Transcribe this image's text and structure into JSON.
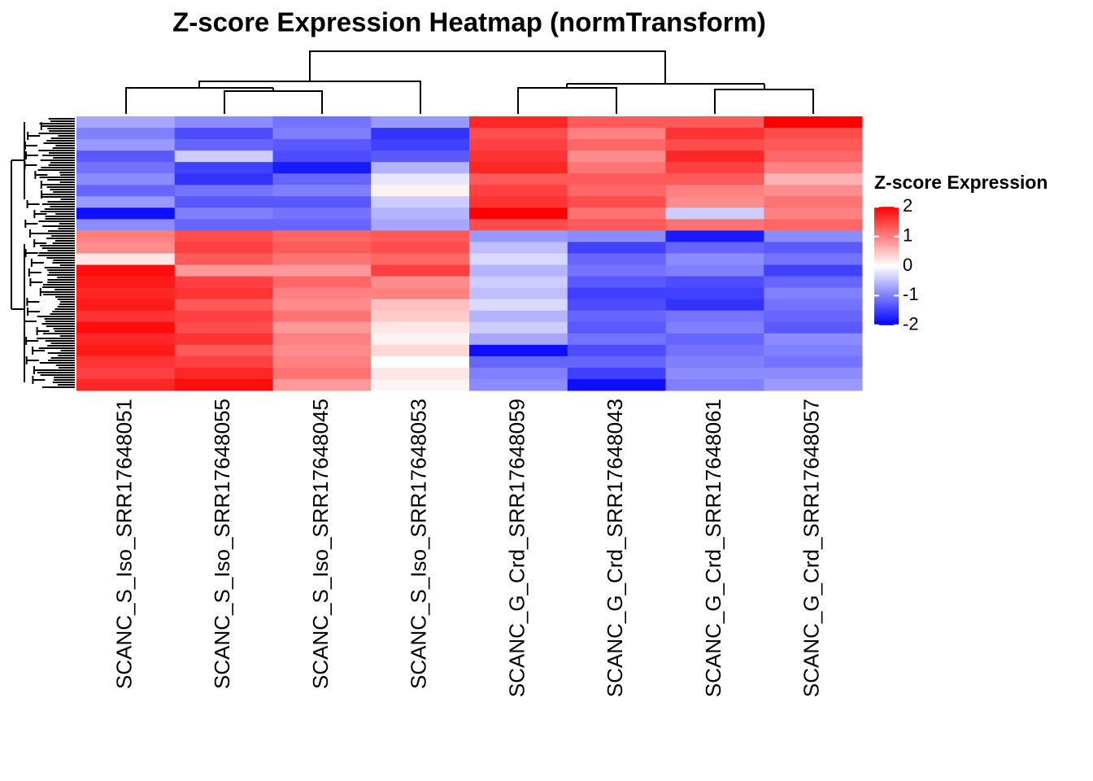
{
  "chart_data": {
    "type": "heatmap",
    "title": "Z-score Expression Heatmap (normTransform)",
    "columns": [
      {
        "name": "SCANC_S_Iso_SRR17648051",
        "values": [
          -0.7,
          -1.0,
          -0.8,
          -1.3,
          -1.1,
          -0.9,
          -1.2,
          -0.8,
          -1.9,
          -0.9,
          1.0,
          0.9,
          0.2,
          1.9,
          1.8,
          1.7,
          1.8,
          1.6,
          1.9,
          1.7,
          1.8,
          1.6,
          1.5,
          1.7
        ]
      },
      {
        "name": "SCANC_S_Iso_SRR17648055",
        "values": [
          -0.9,
          -1.4,
          -1.2,
          -0.4,
          -1.5,
          -1.6,
          -1.1,
          -1.3,
          -1.0,
          -1.2,
          1.4,
          1.5,
          1.3,
          0.8,
          1.5,
          1.6,
          1.3,
          1.5,
          1.4,
          1.6,
          1.3,
          1.5,
          1.7,
          1.9
        ]
      },
      {
        "name": "SCANC_S_Iso_SRR17648045",
        "values": [
          -1.1,
          -1.0,
          -1.3,
          -1.4,
          -1.8,
          -1.2,
          -1.0,
          -1.3,
          -1.1,
          -1.2,
          1.2,
          1.3,
          1.1,
          0.8,
          1.2,
          1.0,
          0.9,
          1.1,
          0.8,
          1.0,
          0.9,
          1.0,
          1.1,
          0.8
        ]
      },
      {
        "name": "SCANC_S_Iso_SRR17648053",
        "values": [
          -0.8,
          -1.6,
          -1.5,
          -1.3,
          -0.6,
          -0.2,
          0.1,
          -0.4,
          -0.6,
          -0.7,
          1.3,
          1.4,
          1.2,
          1.5,
          0.9,
          1.0,
          0.5,
          0.4,
          0.2,
          0.1,
          0.3,
          0.0,
          0.2,
          0.1
        ]
      },
      {
        "name": "SCANC_G_Crd_SRR17648059",
        "values": [
          1.7,
          1.4,
          1.5,
          1.6,
          1.7,
          1.3,
          1.5,
          1.6,
          2.0,
          1.4,
          -0.8,
          -0.5,
          -0.3,
          -0.6,
          -0.4,
          -0.5,
          -0.3,
          -0.6,
          -0.4,
          -0.7,
          -1.9,
          -1.2,
          -1.0,
          -0.9
        ]
      },
      {
        "name": "SCANC_G_Crd_SRR17648043",
        "values": [
          1.3,
          1.0,
          1.2,
          0.9,
          1.1,
          1.3,
          1.2,
          1.4,
          1.1,
          1.3,
          -0.9,
          -1.5,
          -1.2,
          -1.1,
          -1.3,
          -1.5,
          -1.4,
          -1.2,
          -1.3,
          -1.1,
          -1.4,
          -1.2,
          -1.5,
          -1.9
        ]
      },
      {
        "name": "SCANC_G_Crd_SRR17648061",
        "values": [
          1.3,
          1.6,
          1.4,
          1.7,
          1.5,
          1.3,
          1.0,
          0.9,
          -0.4,
          1.1,
          -1.8,
          -1.2,
          -0.9,
          -1.0,
          -1.4,
          -1.5,
          -1.6,
          -1.1,
          -1.0,
          -1.2,
          -1.1,
          -1.0,
          -0.9,
          -1.0
        ]
      },
      {
        "name": "SCANC_G_Crd_SRR17648057",
        "values": [
          2.0,
          1.4,
          1.3,
          1.2,
          1.0,
          0.6,
          0.9,
          1.1,
          1.0,
          1.2,
          -0.9,
          -1.3,
          -1.1,
          -1.5,
          -1.2,
          -1.0,
          -1.1,
          -1.2,
          -1.3,
          -0.9,
          -1.0,
          -1.1,
          -0.9,
          -0.8
        ]
      }
    ],
    "colorbar": {
      "title": "Z-score Expression",
      "lim": [
        -2.2,
        2.2
      ],
      "ticks": [
        2,
        1,
        0,
        -1,
        -2
      ],
      "colors": [
        "#0000ff",
        "#ffffff",
        "#ff0000"
      ]
    }
  }
}
